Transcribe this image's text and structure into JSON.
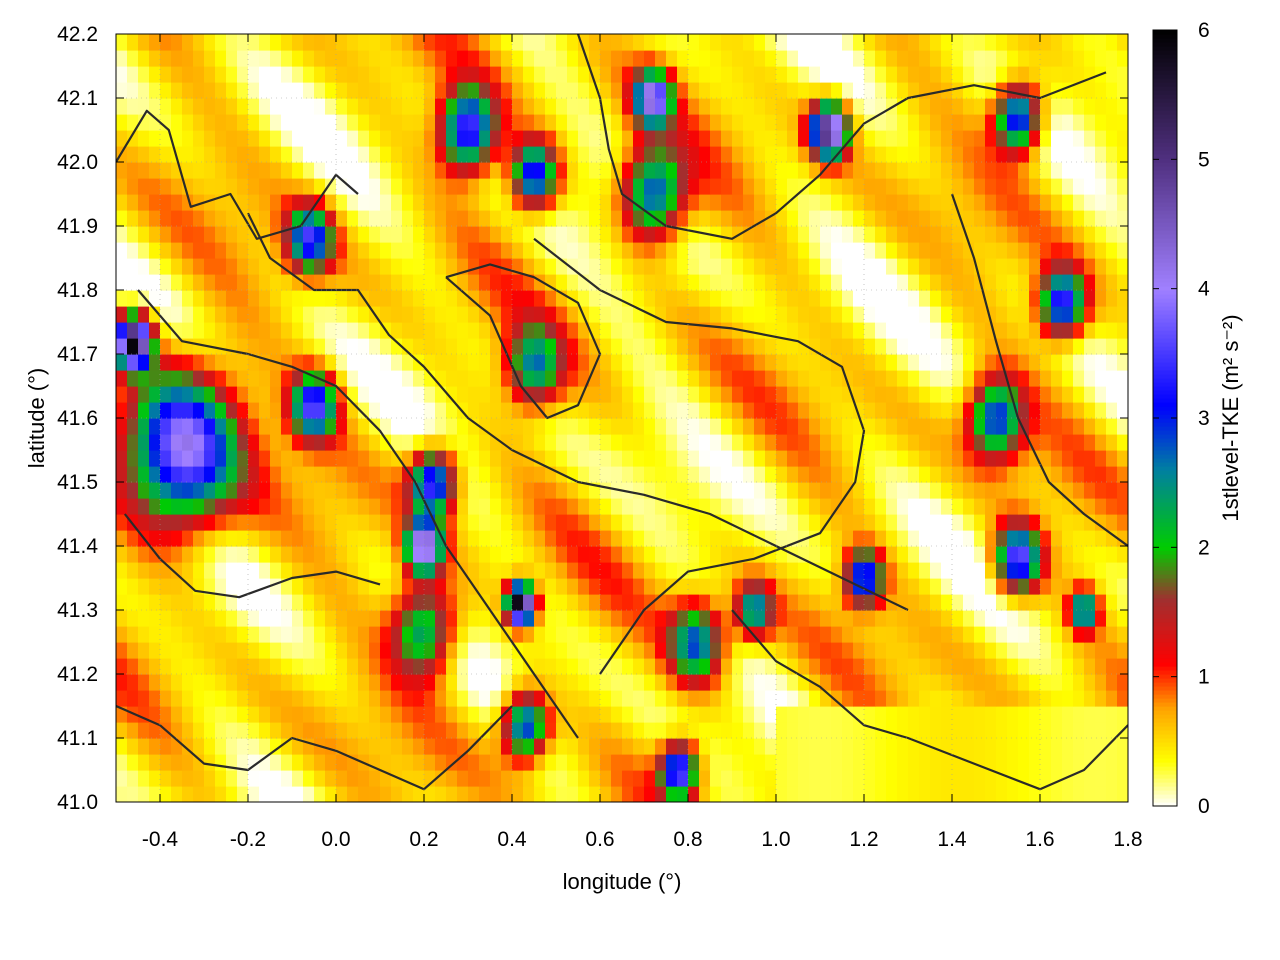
{
  "chart_data": {
    "type": "heatmap",
    "title": "",
    "xlabel": "longitude (°)",
    "ylabel": "latitude (°)",
    "colorbar_label": "1stlevel-TKE (m² s⁻²)",
    "xlim": [
      -0.5,
      1.8
    ],
    "ylim": [
      41.0,
      42.2
    ],
    "x_ticks": [
      -0.4,
      -0.2,
      0.0,
      0.2,
      0.4,
      0.6,
      0.8,
      1.0,
      1.2,
      1.4,
      1.6,
      1.8
    ],
    "x_tick_labels": [
      "-0.4",
      "-0.2",
      "0.0",
      "0.2",
      "0.4",
      "0.6",
      "0.8",
      "1.0",
      "1.2",
      "1.4",
      "1.6",
      "1.8"
    ],
    "y_ticks": [
      41.0,
      41.1,
      41.2,
      41.3,
      41.4,
      41.5,
      41.6,
      41.7,
      41.8,
      41.9,
      42.0,
      42.1,
      42.2
    ],
    "y_tick_labels": [
      "41.0",
      "41.1",
      "41.2",
      "41.3",
      "41.4",
      "41.5",
      "41.6",
      "41.7",
      "41.8",
      "41.9",
      "42.0",
      "42.1",
      "42.2"
    ],
    "colorbar": {
      "range": [
        0,
        6
      ],
      "ticks": [
        0,
        1,
        2,
        3,
        4,
        5,
        6
      ],
      "tick_labels": [
        "0",
        "1",
        "2",
        "3",
        "4",
        "5",
        "6"
      ],
      "stops": [
        {
          "v": 0.0,
          "color": "#ffffff"
        },
        {
          "v": 0.35,
          "color": "#ffff00"
        },
        {
          "v": 0.75,
          "color": "#ffa500"
        },
        {
          "v": 1.1,
          "color": "#ff0000"
        },
        {
          "v": 1.6,
          "color": "#a03030"
        },
        {
          "v": 2.0,
          "color": "#00cc00"
        },
        {
          "v": 2.6,
          "color": "#0080a0"
        },
        {
          "v": 3.1,
          "color": "#0000ff"
        },
        {
          "v": 4.0,
          "color": "#a080ff"
        },
        {
          "v": 5.0,
          "color": "#503080"
        },
        {
          "v": 6.0,
          "color": "#000000"
        }
      ]
    },
    "blobs": [
      {
        "x": -0.35,
        "y": 41.55,
        "r": 0.12,
        "amp": 3.6
      },
      {
        "x": -0.46,
        "y": 41.72,
        "r": 0.04,
        "amp": 5.5
      },
      {
        "x": -0.06,
        "y": 41.88,
        "r": 0.05,
        "amp": 2.8
      },
      {
        "x": -0.05,
        "y": 41.62,
        "r": 0.05,
        "amp": 3.0
      },
      {
        "x": 0.22,
        "y": 41.5,
        "r": 0.05,
        "amp": 3.2
      },
      {
        "x": 0.45,
        "y": 41.68,
        "r": 0.06,
        "amp": 2.1
      },
      {
        "x": 0.42,
        "y": 41.31,
        "r": 0.03,
        "amp": 5.8
      },
      {
        "x": 0.2,
        "y": 41.27,
        "r": 0.07,
        "amp": 2.3
      },
      {
        "x": 0.43,
        "y": 41.12,
        "r": 0.05,
        "amp": 2.9
      },
      {
        "x": 0.2,
        "y": 41.4,
        "r": 0.04,
        "amp": 4.0
      },
      {
        "x": 0.3,
        "y": 42.05,
        "r": 0.06,
        "amp": 3.2
      },
      {
        "x": 0.45,
        "y": 41.98,
        "r": 0.05,
        "amp": 3.0
      },
      {
        "x": 0.72,
        "y": 41.95,
        "r": 0.07,
        "amp": 2.7
      },
      {
        "x": 0.72,
        "y": 42.1,
        "r": 0.04,
        "amp": 3.6
      },
      {
        "x": 1.12,
        "y": 42.05,
        "r": 0.04,
        "amp": 4.8
      },
      {
        "x": 1.55,
        "y": 42.07,
        "r": 0.05,
        "amp": 3.2
      },
      {
        "x": 1.65,
        "y": 41.78,
        "r": 0.05,
        "amp": 3.1
      },
      {
        "x": 1.5,
        "y": 41.6,
        "r": 0.06,
        "amp": 2.6
      },
      {
        "x": 1.55,
        "y": 41.38,
        "r": 0.05,
        "amp": 3.3
      },
      {
        "x": 1.2,
        "y": 41.35,
        "r": 0.04,
        "amp": 3.0
      },
      {
        "x": 0.82,
        "y": 41.25,
        "r": 0.06,
        "amp": 2.4
      },
      {
        "x": 0.78,
        "y": 41.05,
        "r": 0.04,
        "amp": 3.4
      },
      {
        "x": 0.95,
        "y": 41.3,
        "r": 0.04,
        "amp": 2.3
      },
      {
        "x": 1.7,
        "y": 41.3,
        "r": 0.03,
        "amp": 2.6
      }
    ],
    "contours": [
      [
        [
          -0.5,
          42.0
        ],
        [
          -0.43,
          42.08
        ],
        [
          -0.38,
          42.05
        ],
        [
          -0.33,
          41.93
        ],
        [
          -0.24,
          41.95
        ],
        [
          -0.18,
          41.88
        ],
        [
          -0.08,
          41.9
        ],
        [
          0.0,
          41.98
        ],
        [
          0.05,
          41.95
        ]
      ],
      [
        [
          -0.45,
          41.8
        ],
        [
          -0.35,
          41.72
        ],
        [
          -0.2,
          41.7
        ],
        [
          -0.1,
          41.68
        ],
        [
          0.0,
          41.65
        ],
        [
          0.1,
          41.58
        ],
        [
          0.18,
          41.5
        ],
        [
          0.25,
          41.4
        ],
        [
          0.35,
          41.3
        ],
        [
          0.45,
          41.2
        ],
        [
          0.55,
          41.1
        ]
      ],
      [
        [
          -0.48,
          41.45
        ],
        [
          -0.4,
          41.38
        ],
        [
          -0.32,
          41.33
        ],
        [
          -0.22,
          41.32
        ],
        [
          -0.1,
          41.35
        ],
        [
          0.0,
          41.36
        ],
        [
          0.1,
          41.34
        ]
      ],
      [
        [
          -0.2,
          41.92
        ],
        [
          -0.15,
          41.85
        ],
        [
          -0.05,
          41.8
        ],
        [
          0.05,
          41.8
        ],
        [
          0.12,
          41.73
        ],
        [
          0.2,
          41.68
        ],
        [
          0.3,
          41.6
        ],
        [
          0.4,
          41.55
        ],
        [
          0.55,
          41.5
        ],
        [
          0.7,
          41.48
        ],
        [
          0.85,
          41.45
        ],
        [
          1.0,
          41.4
        ],
        [
          1.15,
          41.35
        ],
        [
          1.3,
          41.3
        ]
      ],
      [
        [
          0.45,
          41.88
        ],
        [
          0.6,
          41.8
        ],
        [
          0.75,
          41.75
        ],
        [
          0.9,
          41.74
        ],
        [
          1.05,
          41.72
        ],
        [
          1.15,
          41.68
        ],
        [
          1.2,
          41.58
        ],
        [
          1.18,
          41.5
        ],
        [
          1.1,
          41.42
        ],
        [
          0.95,
          41.38
        ],
        [
          0.8,
          41.36
        ],
        [
          0.7,
          41.3
        ],
        [
          0.6,
          41.2
        ]
      ],
      [
        [
          0.55,
          42.2
        ],
        [
          0.6,
          42.1
        ],
        [
          0.62,
          42.02
        ],
        [
          0.65,
          41.95
        ],
        [
          0.75,
          41.9
        ],
        [
          0.9,
          41.88
        ],
        [
          1.0,
          41.92
        ],
        [
          1.1,
          41.98
        ],
        [
          1.2,
          42.06
        ],
        [
          1.3,
          42.1
        ],
        [
          1.45,
          42.12
        ],
        [
          1.6,
          42.1
        ],
        [
          1.75,
          42.14
        ]
      ],
      [
        [
          1.4,
          41.95
        ],
        [
          1.45,
          41.85
        ],
        [
          1.5,
          41.72
        ],
        [
          1.55,
          41.6
        ],
        [
          1.62,
          41.5
        ],
        [
          1.7,
          41.45
        ],
        [
          1.8,
          41.4
        ]
      ],
      [
        [
          0.25,
          41.82
        ],
        [
          0.35,
          41.76
        ],
        [
          0.42,
          41.65
        ],
        [
          0.48,
          41.6
        ],
        [
          0.55,
          41.62
        ],
        [
          0.6,
          41.7
        ],
        [
          0.55,
          41.78
        ],
        [
          0.45,
          41.82
        ],
        [
          0.35,
          41.84
        ],
        [
          0.25,
          41.82
        ]
      ],
      [
        [
          0.9,
          41.3
        ],
        [
          1.0,
          41.22
        ],
        [
          1.1,
          41.18
        ],
        [
          1.2,
          41.12
        ],
        [
          1.3,
          41.1
        ],
        [
          1.45,
          41.06
        ],
        [
          1.6,
          41.02
        ],
        [
          1.7,
          41.05
        ],
        [
          1.8,
          41.12
        ]
      ],
      [
        [
          -0.5,
          41.15
        ],
        [
          -0.4,
          41.12
        ],
        [
          -0.3,
          41.06
        ],
        [
          -0.2,
          41.05
        ],
        [
          -0.1,
          41.1
        ],
        [
          0.0,
          41.08
        ],
        [
          0.1,
          41.05
        ],
        [
          0.2,
          41.02
        ],
        [
          0.3,
          41.08
        ],
        [
          0.4,
          41.15
        ]
      ]
    ]
  }
}
